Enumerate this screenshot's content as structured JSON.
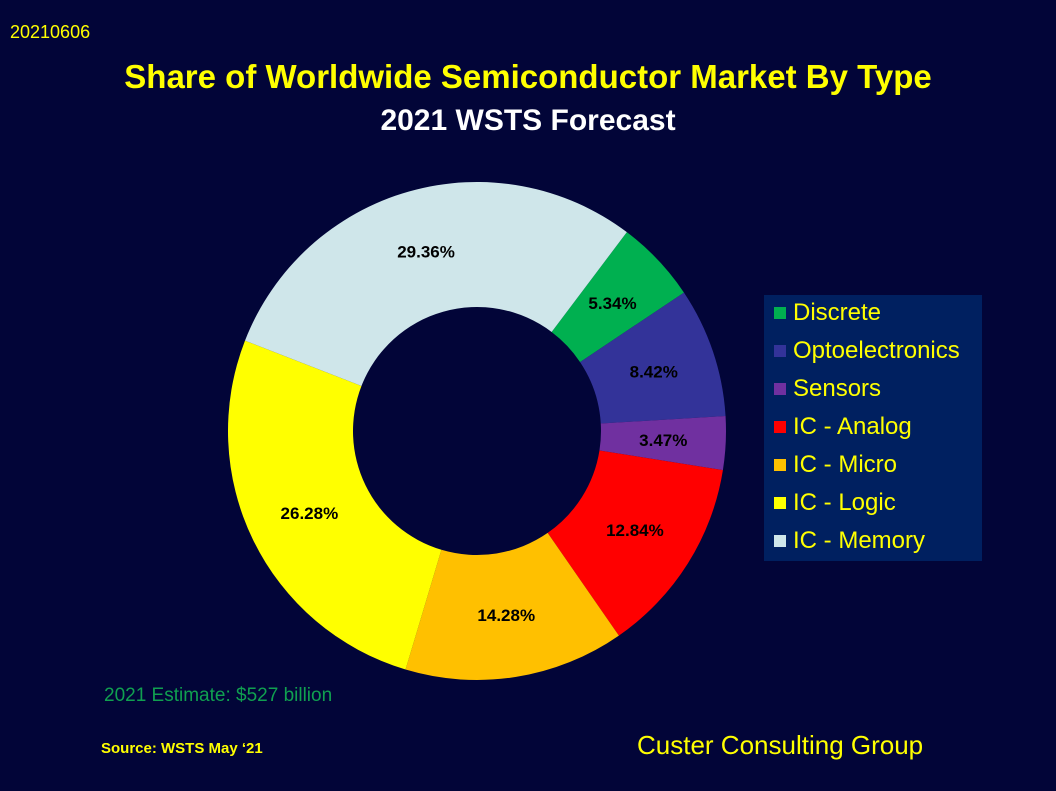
{
  "date_stamp": "20210606",
  "title": "Share of Worldwide Semiconductor Market By Type",
  "subtitle": "2021 WSTS Forecast",
  "estimate": "2021 Estimate: $527 billion",
  "source": "Source: WSTS  May ‘21",
  "company": "Custer Consulting Group",
  "chart_data": {
    "type": "pie",
    "variant": "donut",
    "unit": "%",
    "legend_position": "right",
    "categories": [
      "Discrete",
      "Optoelectronics",
      "Sensors",
      "IC - Analog",
      "IC - Micro",
      "IC - Logic",
      "IC - Memory"
    ],
    "values": [
      5.34,
      8.42,
      3.47,
      12.84,
      14.28,
      26.28,
      29.36
    ],
    "labels": [
      "5.34%",
      "8.42%",
      "3.47%",
      "12.84%",
      "14.28%",
      "26.28%",
      "29.36%"
    ],
    "colors": [
      "#00b050",
      "#333399",
      "#7030a0",
      "#ff0000",
      "#ffc000",
      "#ffff00",
      "#cfe6ea"
    ]
  }
}
